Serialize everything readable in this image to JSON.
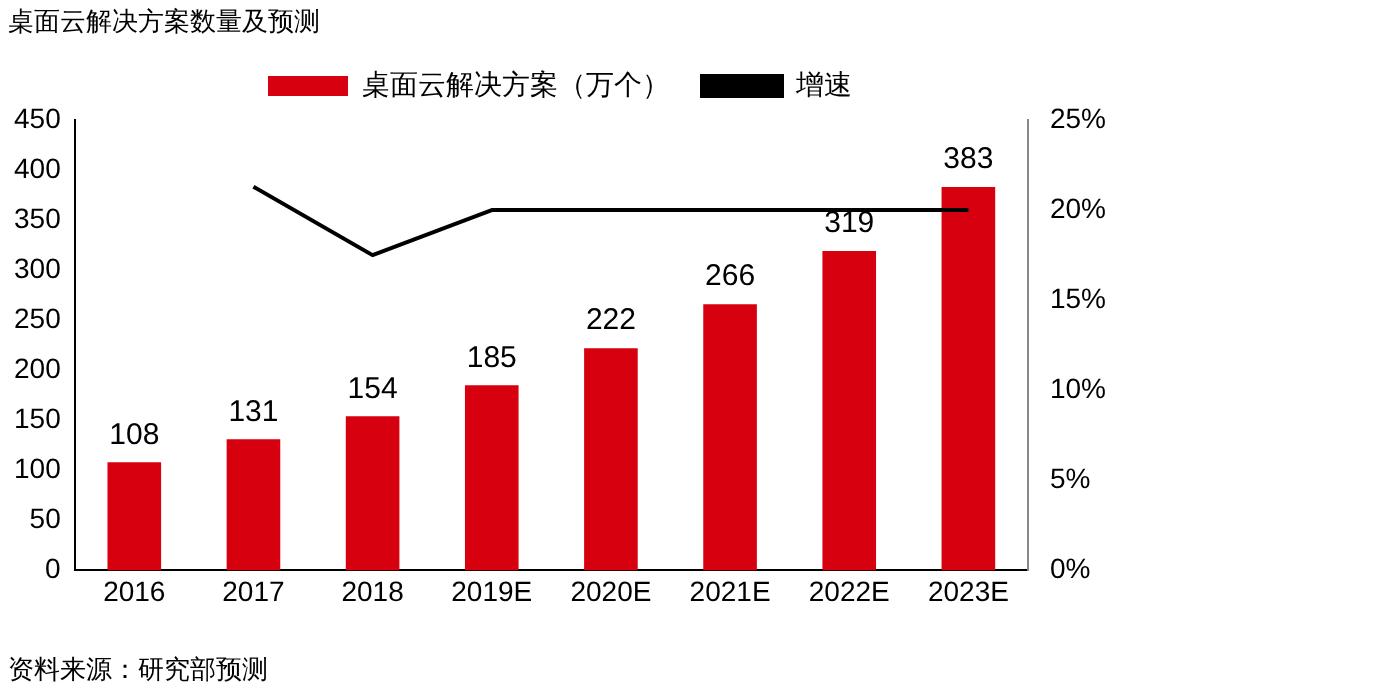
{
  "chart_data": {
    "type": "bar",
    "title": "桌面云解决方案数量及预测",
    "categories": [
      "2016",
      "2017",
      "2018",
      "2019E",
      "2020E",
      "2021E",
      "2022E",
      "2023E"
    ],
    "series": [
      {
        "name": "桌面云解决方案（万个）",
        "color": "#d7000f",
        "values": [
          108,
          131,
          154,
          185,
          222,
          266,
          319,
          383
        ],
        "value_labels": [
          "108",
          "131",
          "154",
          "185",
          "222",
          "266",
          "319",
          "383"
        ]
      },
      {
        "name": "增速",
        "type": "line",
        "axis": "y2",
        "color": "#000000",
        "values": [
          null,
          21.3,
          17.5,
          20,
          20,
          20,
          20,
          20
        ]
      }
    ],
    "ylim": [
      0,
      450
    ],
    "yticks": [
      0,
      50,
      100,
      150,
      200,
      250,
      300,
      350,
      400,
      450
    ],
    "y2lim": [
      0,
      25
    ],
    "y2ticks": [
      {
        "value": 0,
        "label": "0%"
      },
      {
        "value": 5,
        "label": "5%"
      },
      {
        "value": 10,
        "label": "10%"
      },
      {
        "value": 15,
        "label": "15%"
      },
      {
        "value": 20,
        "label": "20%"
      },
      {
        "value": 25,
        "label": "25%"
      }
    ],
    "grid": false,
    "legend": "top",
    "marker": "none",
    "annotations": [
      "资料来源：研究部预测"
    ]
  }
}
